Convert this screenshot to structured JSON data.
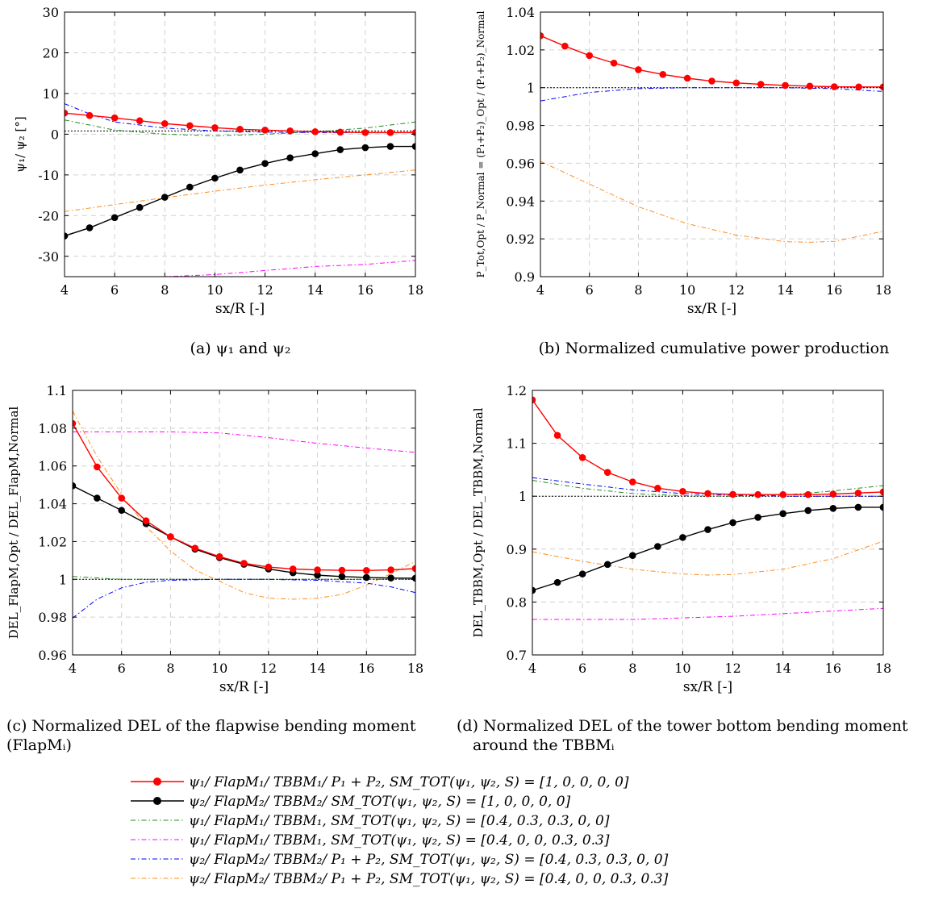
{
  "chart_data": [
    {
      "id": "a",
      "type": "line",
      "caption": "(a) ψ₁ and ψ₂",
      "xlabel": "sx/R [-]",
      "ylabel": "ψ₁/ ψ₂ [°]",
      "xlim": [
        4,
        18
      ],
      "ylim": [
        -35,
        30
      ],
      "xticks": [
        4,
        6,
        8,
        10,
        12,
        14,
        16,
        18
      ],
      "yticks": [
        -30,
        -20,
        -10,
        0,
        10,
        20,
        30
      ],
      "ytick_labels": [
        "-30",
        "-20",
        "-10",
        "0",
        "10",
        "20",
        "30"
      ],
      "grid": true,
      "series": [
        {
          "key": "s1",
          "x": [
            4,
            5,
            6,
            7,
            8,
            9,
            10,
            11,
            12,
            13,
            14,
            15,
            16,
            17,
            18
          ],
          "y": [
            5.2,
            4.6,
            4.0,
            3.3,
            2.6,
            2.1,
            1.6,
            1.2,
            1.0,
            0.8,
            0.6,
            0.5,
            0.4,
            0.4,
            0.4
          ]
        },
        {
          "key": "s2",
          "x": [
            4,
            5,
            6,
            7,
            8,
            9,
            10,
            11,
            12,
            13,
            14,
            15,
            16,
            17,
            18
          ],
          "y": [
            -25,
            -23,
            -20.5,
            -18,
            -15.5,
            -13,
            -10.8,
            -8.8,
            -7.2,
            -5.8,
            -4.8,
            -3.8,
            -3.3,
            -3,
            -3
          ]
        },
        {
          "key": "s3",
          "x": [
            4,
            6,
            8,
            10,
            12,
            14,
            16,
            18
          ],
          "y": [
            3.5,
            1,
            0,
            -0.4,
            0,
            0.6,
            1.5,
            3
          ]
        },
        {
          "key": "s4",
          "x": [
            4,
            6,
            8,
            10,
            12,
            14,
            16,
            18
          ],
          "y": [
            -35,
            -35,
            -35,
            -34.5,
            -33.5,
            -32.5,
            -32,
            -31
          ]
        },
        {
          "key": "s5",
          "x": [
            4,
            5,
            6,
            8,
            10,
            12,
            14,
            16,
            18
          ],
          "y": [
            7.5,
            5,
            3,
            1.5,
            0.8,
            0.5,
            0.4,
            0.4,
            0.4
          ]
        },
        {
          "key": "s6",
          "x": [
            4,
            6,
            8,
            10,
            12,
            14,
            16,
            18
          ],
          "y": [
            -19,
            -17.3,
            -15.6,
            -14,
            -12.5,
            -11.2,
            -10,
            -8.8
          ]
        },
        {
          "key": "s7",
          "x": [
            4,
            18
          ],
          "y": [
            0.8,
            0.8
          ]
        }
      ]
    },
    {
      "id": "b",
      "type": "line",
      "caption": "(b) Normalized cumulative power production",
      "xlabel": "sx/R [-]",
      "ylabel": "P_Tot,Opt / P_Normal = (P₁+P₂)_Opt / (P₁+P₂)_Normal",
      "xlim": [
        4,
        18
      ],
      "ylim": [
        0.9,
        1.04
      ],
      "xticks": [
        4,
        6,
        8,
        10,
        12,
        14,
        16,
        18
      ],
      "yticks": [
        0.9,
        0.92,
        0.94,
        0.96,
        0.98,
        1,
        1.02,
        1.04
      ],
      "ytick_labels": [
        "0.9",
        "0.92",
        "0.94",
        "0.96",
        "0.98",
        "1",
        "1.02",
        "1.04"
      ],
      "grid": true,
      "series": [
        {
          "key": "s1",
          "x": [
            4,
            5,
            6,
            7,
            8,
            9,
            10,
            11,
            12,
            13,
            14,
            15,
            16,
            17,
            18
          ],
          "y": [
            1.0275,
            1.022,
            1.017,
            1.013,
            1.0095,
            1.007,
            1.005,
            1.0035,
            1.0025,
            1.0018,
            1.0012,
            1.0008,
            1.0005,
            1.0004,
            1.0004
          ]
        },
        {
          "key": "s5",
          "x": [
            4,
            6,
            8,
            10,
            12,
            14,
            16,
            18
          ],
          "y": [
            0.993,
            0.9975,
            0.9995,
            1,
            1,
            1,
            0.9995,
            0.998
          ]
        },
        {
          "key": "s6",
          "x": [
            4,
            6,
            8,
            10,
            12,
            14,
            15,
            16,
            18
          ],
          "y": [
            0.961,
            0.949,
            0.937,
            0.928,
            0.922,
            0.9185,
            0.9182,
            0.9187,
            0.924
          ]
        },
        {
          "key": "s7",
          "x": [
            4,
            18
          ],
          "y": [
            1,
            1
          ]
        }
      ]
    },
    {
      "id": "c",
      "type": "line",
      "caption": "(c) Normalized DEL of the flapwise bending moment (FlapMᵢ)",
      "xlabel": "sx/R [-]",
      "ylabel": "DEL_FlapM,Opt / DEL_FlapM,Normal",
      "xlim": [
        4,
        18
      ],
      "ylim": [
        0.96,
        1.1
      ],
      "xticks": [
        4,
        6,
        8,
        10,
        12,
        14,
        16,
        18
      ],
      "yticks": [
        0.96,
        0.98,
        1,
        1.02,
        1.04,
        1.06,
        1.08,
        1.1
      ],
      "ytick_labels": [
        "0.96",
        "0.98",
        "1",
        "1.02",
        "1.04",
        "1.06",
        "1.08",
        "1.1"
      ],
      "grid": true,
      "series": [
        {
          "key": "s1",
          "x": [
            4,
            5,
            6,
            7,
            8,
            9,
            10,
            11,
            12,
            13,
            14,
            15,
            16,
            17,
            18
          ],
          "y": [
            1.0825,
            1.0595,
            1.043,
            1.031,
            1.0225,
            1.0165,
            1.012,
            1.0085,
            1.0065,
            1.0055,
            1.005,
            1.0048,
            1.0047,
            1.005,
            1.0057
          ]
        },
        {
          "key": "s2",
          "x": [
            4,
            5,
            6,
            7,
            8,
            9,
            10,
            11,
            12,
            13,
            14,
            15,
            16,
            17,
            18
          ],
          "y": [
            1.0495,
            1.043,
            1.0365,
            1.0295,
            1.0225,
            1.016,
            1.0115,
            1.008,
            1.0055,
            1.0035,
            1.0022,
            1.0015,
            1.001,
            1.0007,
            1.0006
          ]
        },
        {
          "key": "s3",
          "x": [
            4,
            6,
            8,
            10,
            12,
            14,
            16,
            18
          ],
          "y": [
            1.0015,
            1,
            1,
            1,
            1,
            1,
            1,
            1
          ]
        },
        {
          "key": "s4",
          "x": [
            4,
            6,
            8,
            10,
            12,
            14,
            16,
            18
          ],
          "y": [
            1.078,
            1.078,
            1.078,
            1.0775,
            1.075,
            1.072,
            1.0695,
            1.0672
          ]
        },
        {
          "key": "s5",
          "x": [
            4,
            5,
            6,
            7,
            8,
            10,
            12,
            14,
            16,
            17,
            18
          ],
          "y": [
            0.9795,
            0.9895,
            0.9955,
            0.9985,
            0.9995,
            1,
            1,
            0.9995,
            0.998,
            0.996,
            0.993
          ]
        },
        {
          "key": "s6",
          "x": [
            4,
            5,
            6,
            7,
            8,
            9,
            10,
            11,
            12,
            13,
            14,
            15,
            16,
            17,
            18
          ],
          "y": [
            1.089,
            1.065,
            1.045,
            1.028,
            1.015,
            1.005,
            0.999,
            0.993,
            0.99,
            0.9895,
            0.99,
            0.992,
            0.997,
            1.003,
            1.0095
          ]
        },
        {
          "key": "s7",
          "x": [
            4,
            18
          ],
          "y": [
            1,
            1
          ]
        }
      ]
    },
    {
      "id": "d",
      "type": "line",
      "caption": "(d) Normalized DEL of the tower bottom bending moment around the TBBMᵢ",
      "xlabel": "sx/R [-]",
      "ylabel": "DEL_TBBM,Opt / DEL_TBBM,Normal",
      "xlim": [
        4,
        18
      ],
      "ylim": [
        0.7,
        1.2
      ],
      "xticks": [
        4,
        6,
        8,
        10,
        12,
        14,
        16,
        18
      ],
      "yticks": [
        0.7,
        0.8,
        0.9,
        1,
        1.1,
        1.2
      ],
      "ytick_labels": [
        "0.7",
        "0.8",
        "0.9",
        "1",
        "1.1",
        "1.2"
      ],
      "grid": true,
      "series": [
        {
          "key": "s1",
          "x": [
            4,
            5,
            6,
            7,
            8,
            9,
            10,
            11,
            12,
            13,
            14,
            15,
            16,
            17,
            18
          ],
          "y": [
            1.182,
            1.115,
            1.073,
            1.045,
            1.027,
            1.015,
            1.009,
            1.005,
            1.0035,
            1.003,
            1.003,
            1.003,
            1.004,
            1.006,
            1.008
          ]
        },
        {
          "key": "s2",
          "x": [
            4,
            5,
            6,
            7,
            8,
            9,
            10,
            11,
            12,
            13,
            14,
            15,
            16,
            17,
            18
          ],
          "y": [
            0.822,
            0.837,
            0.853,
            0.871,
            0.888,
            0.905,
            0.922,
            0.937,
            0.95,
            0.96,
            0.967,
            0.973,
            0.977,
            0.979,
            0.979
          ]
        },
        {
          "key": "s3",
          "x": [
            4,
            6,
            8,
            10,
            12,
            14,
            16,
            18
          ],
          "y": [
            1.03,
            1.015,
            1.005,
            1.001,
            1,
            1.002,
            1.01,
            1.02
          ]
        },
        {
          "key": "s4",
          "x": [
            4,
            6,
            8,
            10,
            12,
            14,
            16,
            18
          ],
          "y": [
            0.767,
            0.767,
            0.767,
            0.77,
            0.773,
            0.778,
            0.783,
            0.788
          ]
        },
        {
          "key": "s5",
          "x": [
            4,
            6,
            8,
            10,
            12,
            14,
            16,
            18
          ],
          "y": [
            1.035,
            1.023,
            1.012,
            1.005,
            1.002,
            1,
            1,
            1
          ]
        },
        {
          "key": "s6",
          "x": [
            4,
            6,
            8,
            10,
            11,
            12,
            14,
            16,
            18
          ],
          "y": [
            0.895,
            0.877,
            0.862,
            0.853,
            0.851,
            0.852,
            0.862,
            0.882,
            0.915
          ]
        },
        {
          "key": "s7",
          "x": [
            4,
            18
          ],
          "y": [
            1,
            1
          ]
        }
      ]
    }
  ],
  "series_styles": {
    "s1": {
      "color": "#ff0000",
      "dash": "",
      "marker": true,
      "width": 1.4
    },
    "s2": {
      "color": "#000000",
      "dash": "",
      "marker": true,
      "width": 1.4
    },
    "s3": {
      "color": "#228b22",
      "dash": "6,3,1.5,3",
      "marker": false,
      "width": 1
    },
    "s4": {
      "color": "#ff00ff",
      "dash": "6,3,1.5,3",
      "marker": false,
      "width": 1
    },
    "s5": {
      "color": "#0000ff",
      "dash": "6,3,1.5,3",
      "marker": false,
      "width": 1
    },
    "s6": {
      "color": "#ff8c1a",
      "dash": "6,3,1.5,3",
      "marker": false,
      "width": 1
    },
    "s7": {
      "color": "#000000",
      "dash": "2,2",
      "marker": false,
      "width": 1
    }
  },
  "legend": [
    {
      "key": "s1",
      "label": "ψ₁/ FlapM₁/ TBBM₁/ P₁ + P₂, SM_TOT(ψ₁, ψ₂, S) = [1, 0, 0, 0, 0]"
    },
    {
      "key": "s2",
      "label": "ψ₂/ FlapM₂/ TBBM₂/ SM_TOT(ψ₁, ψ₂, S) = [1, 0, 0, 0, 0]"
    },
    {
      "key": "s3",
      "label": "ψ₁/ FlapM₁/ TBBM₁, SM_TOT(ψ₁, ψ₂, S) = [0.4, 0.3, 0.3, 0, 0]"
    },
    {
      "key": "s4",
      "label": "ψ₁/ FlapM₁/ TBBM₁, SM_TOT(ψ₁, ψ₂, S) = [0.4, 0, 0, 0.3, 0.3]"
    },
    {
      "key": "s5",
      "label": "ψ₂/ FlapM₂/ TBBM₂/ P₁ + P₂, SM_TOT(ψ₁, ψ₂, S) = [0.4, 0.3, 0.3, 0, 0]"
    },
    {
      "key": "s6",
      "label": "ψ₂/ FlapM₂/ TBBM₂/ P₁ + P₂, SM_TOT(ψ₁, ψ₂, S) = [0.4, 0, 0, 0.3, 0.3]"
    }
  ]
}
